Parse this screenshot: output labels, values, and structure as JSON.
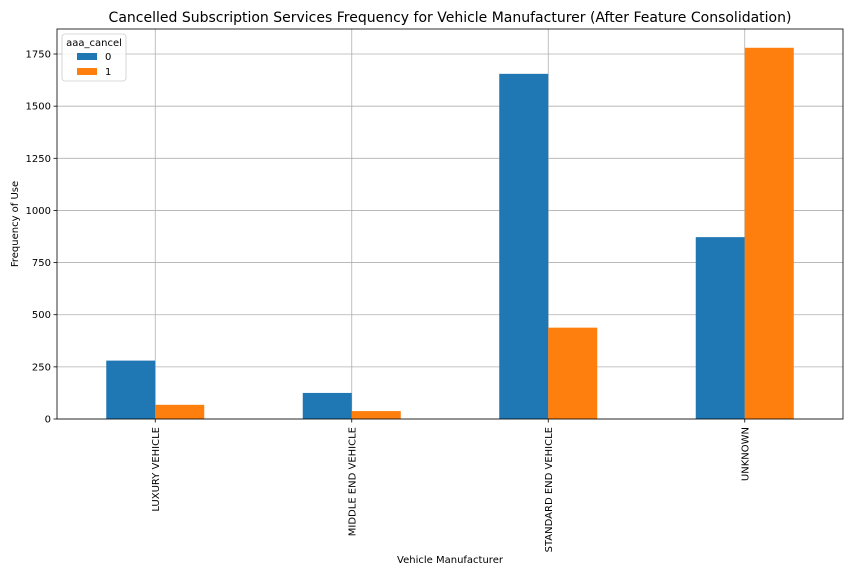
{
  "chart_data": {
    "type": "bar",
    "title": "Cancelled Subscription Services Frequency for Vehicle Manufacturer (After Feature Consolidation)",
    "xlabel": "Vehicle Manufacturer",
    "ylabel": "Frequency of Use",
    "categories": [
      "LUXURY VEHICLE",
      "MIDDLE END VEHICLE",
      "STANDARD END VEHICLE",
      "UNKNOWN"
    ],
    "series": [
      {
        "name": "0",
        "values": [
          280,
          125,
          1655,
          872
        ],
        "color": "#1f77b4"
      },
      {
        "name": "1",
        "values": [
          68,
          38,
          438,
          1780
        ],
        "color": "#ff7f0e"
      }
    ],
    "ylim": [
      0,
      1870
    ],
    "yticks": [
      0,
      250,
      500,
      750,
      1000,
      1250,
      1500,
      1750
    ],
    "grid": true,
    "legend": {
      "title": "aaa_cancel",
      "position": "top-left"
    }
  }
}
